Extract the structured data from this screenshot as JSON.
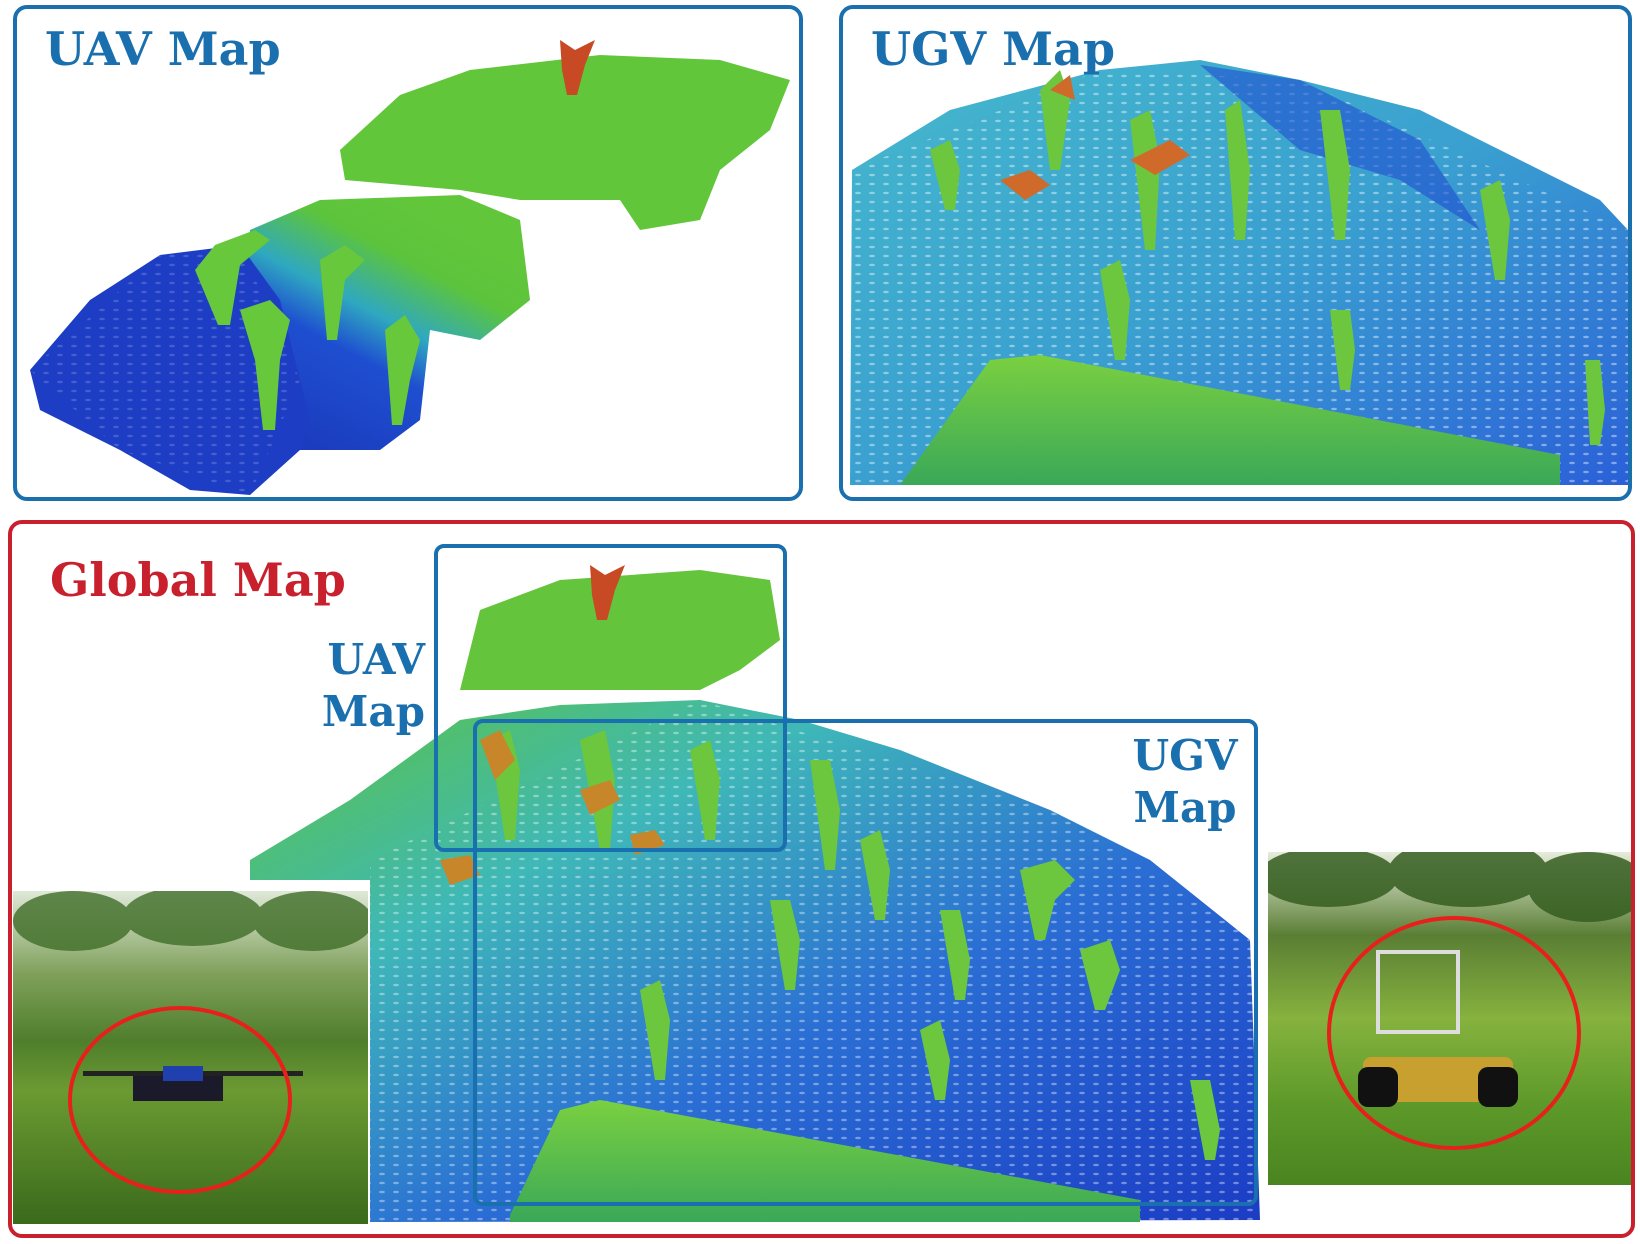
{
  "panels": {
    "uav": {
      "title": "UAV Map"
    },
    "ugv": {
      "title": "UGV Map"
    },
    "global": {
      "title": "Global Map",
      "uav_line1": "UAV",
      "uav_line2": "Map",
      "ugv_line1": "UGV",
      "ugv_line2": "Map"
    }
  },
  "colors": {
    "frame_blue": "#1a6fae",
    "frame_red": "#c8202c",
    "cloud_low": "#1f3fc0",
    "cloud_mid": "#3bb8c8",
    "cloud_high": "#5cc83a",
    "cloud_top": "#d0502a"
  }
}
